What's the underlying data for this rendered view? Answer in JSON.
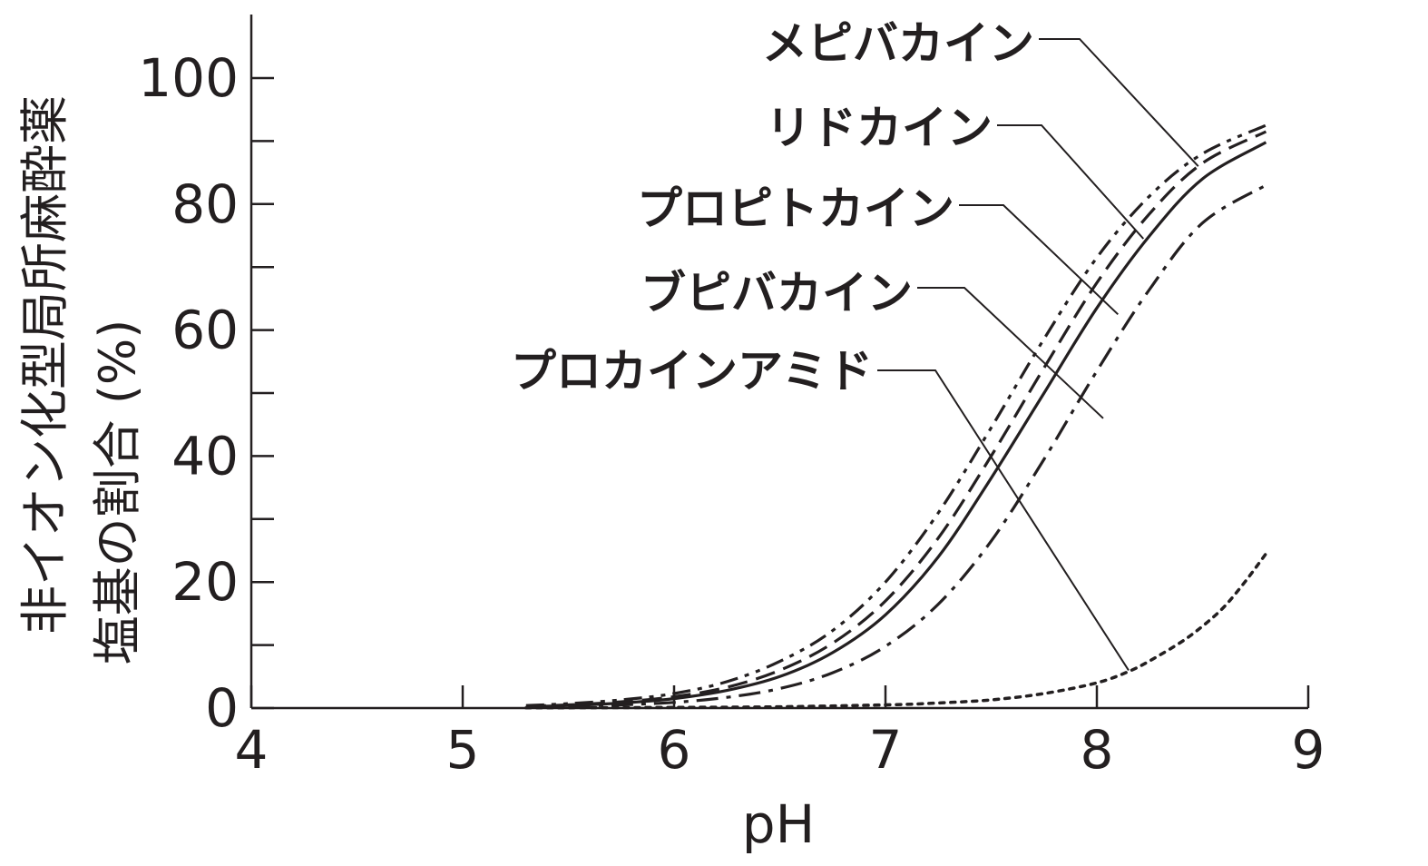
{
  "chart_data": {
    "type": "line",
    "title": "",
    "xlabel": "pH",
    "ylabel_lines": [
      "非イオン化型局所麻酔薬",
      "塩基の割合 (%)"
    ],
    "xlim": [
      4,
      9
    ],
    "ylim": [
      0,
      100
    ],
    "x_ticks": [
      4,
      5,
      6,
      7,
      8,
      9
    ],
    "y_ticks": [
      0,
      20,
      40,
      60,
      80,
      100
    ],
    "y_minor_ticks": [
      10,
      30,
      50,
      70,
      90
    ],
    "grid": false,
    "legend": "callout labels with leader lines",
    "line_color": "#231f20",
    "series": [
      {
        "name": "メピバカイン",
        "style": "dash-dot-dot",
        "x": [
          5.3,
          5.5,
          5.75,
          6.0,
          6.25,
          6.5,
          6.75,
          7.0,
          7.25,
          7.5,
          7.75,
          8.0,
          8.25,
          8.5,
          8.8
        ],
        "y": [
          0.4,
          0.7,
          1.3,
          2.3,
          4.2,
          7.4,
          12.3,
          20.0,
          31.0,
          44.5,
          58.6,
          71.5,
          81.3,
          88.0,
          92.5
        ],
        "label_anchor": [
          8.48,
          86.0
        ]
      },
      {
        "name": "リドカイン",
        "style": "dashed",
        "x": [
          5.3,
          5.5,
          5.75,
          6.0,
          6.25,
          6.5,
          6.75,
          7.0,
          7.25,
          7.5,
          7.75,
          8.0,
          8.25,
          8.5,
          8.8
        ],
        "y": [
          0.3,
          0.5,
          1.0,
          1.8,
          3.3,
          6.0,
          10.3,
          17.0,
          27.0,
          40.0,
          54.0,
          67.5,
          78.5,
          86.5,
          91.5
        ],
        "label_anchor": [
          8.22,
          74.5
        ]
      },
      {
        "name": "プロピトカイン",
        "style": "solid",
        "x": [
          5.3,
          5.5,
          5.75,
          6.0,
          6.25,
          6.5,
          6.75,
          7.0,
          7.25,
          7.5,
          7.75,
          8.0,
          8.25,
          8.5,
          8.8
        ],
        "y": [
          0.25,
          0.4,
          0.8,
          1.5,
          2.8,
          5.0,
          8.8,
          14.8,
          24.0,
          36.5,
          50.0,
          63.5,
          75.0,
          84.0,
          89.8
        ],
        "label_anchor": [
          8.1,
          62.5
        ]
      },
      {
        "name": "ブピバカイン",
        "style": "dash-dot",
        "x": [
          5.3,
          5.5,
          5.75,
          6.0,
          6.25,
          6.5,
          6.75,
          7.0,
          7.25,
          7.5,
          7.75,
          8.0,
          8.25,
          8.5,
          8.8
        ],
        "y": [
          0.2,
          0.3,
          0.5,
          0.9,
          1.7,
          3.1,
          5.6,
          9.8,
          16.5,
          26.5,
          39.5,
          53.5,
          66.5,
          77.0,
          83.0
        ],
        "label_anchor": [
          8.03,
          46.0
        ]
      },
      {
        "name": "プロカインアミド",
        "style": "dotted",
        "x": [
          5.3,
          5.5,
          6.0,
          6.5,
          7.0,
          7.25,
          7.5,
          7.75,
          8.0,
          8.15,
          8.25,
          8.4,
          8.5,
          8.6,
          8.7,
          8.8
        ],
        "y": [
          0.05,
          0.05,
          0.1,
          0.2,
          0.5,
          0.8,
          1.3,
          2.3,
          4.0,
          5.8,
          7.5,
          10.5,
          13.0,
          16.0,
          20.0,
          24.5
        ],
        "label_anchor": [
          8.15,
          6.0
        ]
      }
    ]
  }
}
